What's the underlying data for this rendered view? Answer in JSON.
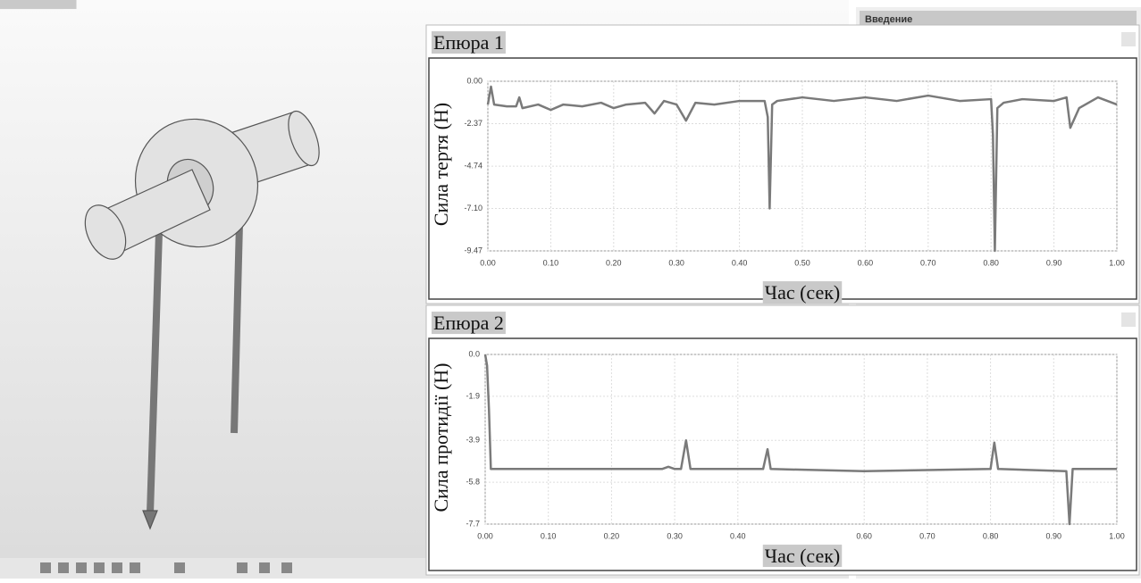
{
  "sidebar": {
    "heading": "Введение"
  },
  "chart_data": [
    {
      "type": "line",
      "title": "Епюра 1",
      "ylabel": "Сила тертя (Н)",
      "xlabel": "Час (сек)",
      "grid": true,
      "color": "#7a7a7a",
      "xlim": [
        0,
        1
      ],
      "ylim": [
        -9.47,
        0
      ],
      "xticks": [
        {
          "value": 0,
          "label": "0.00"
        },
        {
          "value": 0.1,
          "label": "0.10"
        },
        {
          "value": 0.2,
          "label": "0.20"
        },
        {
          "value": 0.3,
          "label": "0.30"
        },
        {
          "value": 0.4,
          "label": "0.40"
        },
        {
          "value": 0.5,
          "label": "0.50"
        },
        {
          "value": 0.6,
          "label": "0.60"
        },
        {
          "value": 0.7,
          "label": "0.70"
        },
        {
          "value": 0.8,
          "label": "0.80"
        },
        {
          "value": 0.9,
          "label": "0.90"
        },
        {
          "value": 1,
          "label": "1.00"
        }
      ],
      "yticks": [
        {
          "value": 0,
          "label": "0.00"
        },
        {
          "value": -2.37,
          "label": "-2.37"
        },
        {
          "value": -4.74,
          "label": "-4.74"
        },
        {
          "value": -7.1,
          "label": "-7.10"
        },
        {
          "value": -9.47,
          "label": "-9.47"
        }
      ],
      "x": [
        0,
        0.005,
        0.01,
        0.03,
        0.045,
        0.05,
        0.055,
        0.08,
        0.1,
        0.12,
        0.15,
        0.18,
        0.2,
        0.22,
        0.25,
        0.265,
        0.28,
        0.3,
        0.315,
        0.33,
        0.36,
        0.4,
        0.44,
        0.445,
        0.448,
        0.452,
        0.46,
        0.5,
        0.55,
        0.6,
        0.65,
        0.7,
        0.75,
        0.8,
        0.803,
        0.806,
        0.81,
        0.82,
        0.85,
        0.9,
        0.92,
        0.926,
        0.94,
        0.97,
        1.0
      ],
      "values": [
        -1.3,
        -0.3,
        -1.3,
        -1.4,
        -1.4,
        -0.9,
        -1.5,
        -1.3,
        -1.6,
        -1.3,
        -1.4,
        -1.2,
        -1.5,
        -1.3,
        -1.2,
        -1.8,
        -1.1,
        -1.3,
        -2.2,
        -1.2,
        -1.3,
        -1.1,
        -1.1,
        -2.0,
        -7.1,
        -1.3,
        -1.1,
        -0.9,
        -1.1,
        -0.9,
        -1.1,
        -0.8,
        -1.1,
        -1.0,
        -3.0,
        -9.47,
        -1.5,
        -1.2,
        -1.0,
        -1.1,
        -0.9,
        -2.6,
        -1.5,
        -0.9,
        -1.3
      ]
    },
    {
      "type": "line",
      "title": "Епюра 2",
      "ylabel": "Сила протидії (Н)",
      "xlabel": "Час (сек)",
      "grid": true,
      "color": "#7a7a7a",
      "xlim": [
        0,
        1
      ],
      "ylim": [
        -7.7,
        0
      ],
      "xticks": [
        {
          "value": 0,
          "label": "0.00"
        },
        {
          "value": 0.1,
          "label": "0.10"
        },
        {
          "value": 0.2,
          "label": "0.20"
        },
        {
          "value": 0.3,
          "label": "0.30"
        },
        {
          "value": 0.4,
          "label": "0.40"
        },
        {
          "value": 0.6,
          "label": "0.60"
        },
        {
          "value": 0.7,
          "label": "0.70"
        },
        {
          "value": 0.8,
          "label": "0.80"
        },
        {
          "value": 0.9,
          "label": "0.90"
        },
        {
          "value": 1,
          "label": "1.00"
        }
      ],
      "yticks": [
        {
          "value": 0,
          "label": "0.0"
        },
        -1.9,
        -3.9,
        -5.8,
        -7.7
      ],
      "x": [
        0,
        0.003,
        0.006,
        0.009,
        0.1,
        0.28,
        0.29,
        0.3,
        0.31,
        0.318,
        0.325,
        0.44,
        0.447,
        0.452,
        0.6,
        0.8,
        0.806,
        0.812,
        0.92,
        0.925,
        0.93,
        1.0
      ],
      "values": [
        0,
        -0.5,
        -2.5,
        -5.2,
        -5.2,
        -5.2,
        -5.1,
        -5.2,
        -5.2,
        -3.9,
        -5.2,
        -5.2,
        -4.3,
        -5.2,
        -5.3,
        -5.2,
        -4.0,
        -5.2,
        -5.3,
        -7.7,
        -5.2,
        -5.2
      ]
    }
  ]
}
